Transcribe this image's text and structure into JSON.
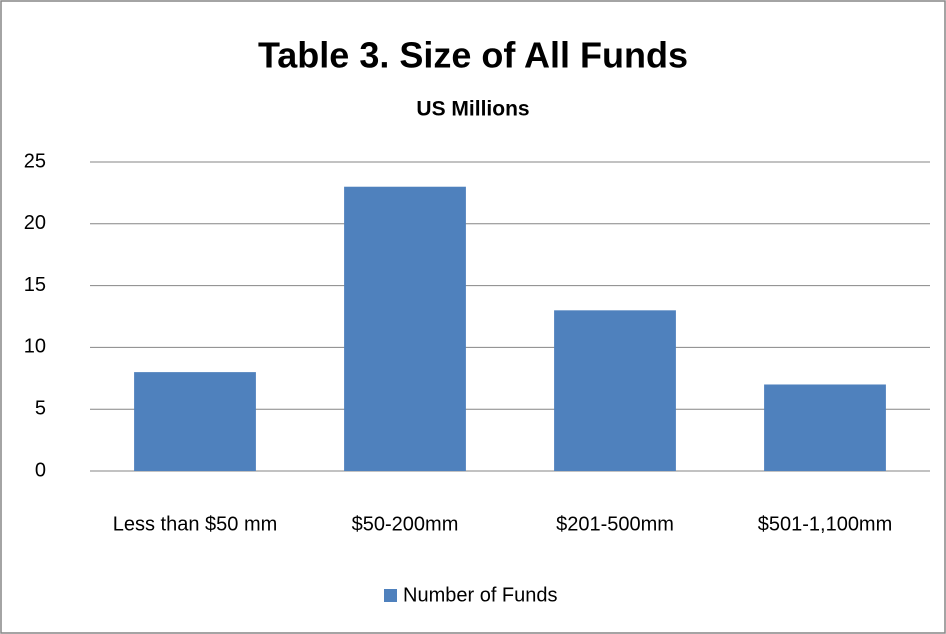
{
  "chart_data": {
    "type": "bar",
    "title": "Table 3. Size of All Funds",
    "subtitle": "US Millions",
    "categories": [
      "Less than $50 mm",
      "$50-200mm",
      "$201-500mm",
      "$501-1,100mm"
    ],
    "series": [
      {
        "name": "Number of Funds",
        "color": "#4f81bd",
        "values": [
          8,
          23,
          13,
          7
        ]
      }
    ],
    "ylim": [
      0,
      25
    ],
    "yticks": [
      0,
      5,
      10,
      15,
      20,
      25
    ],
    "grid": true,
    "legend": "bottom"
  }
}
